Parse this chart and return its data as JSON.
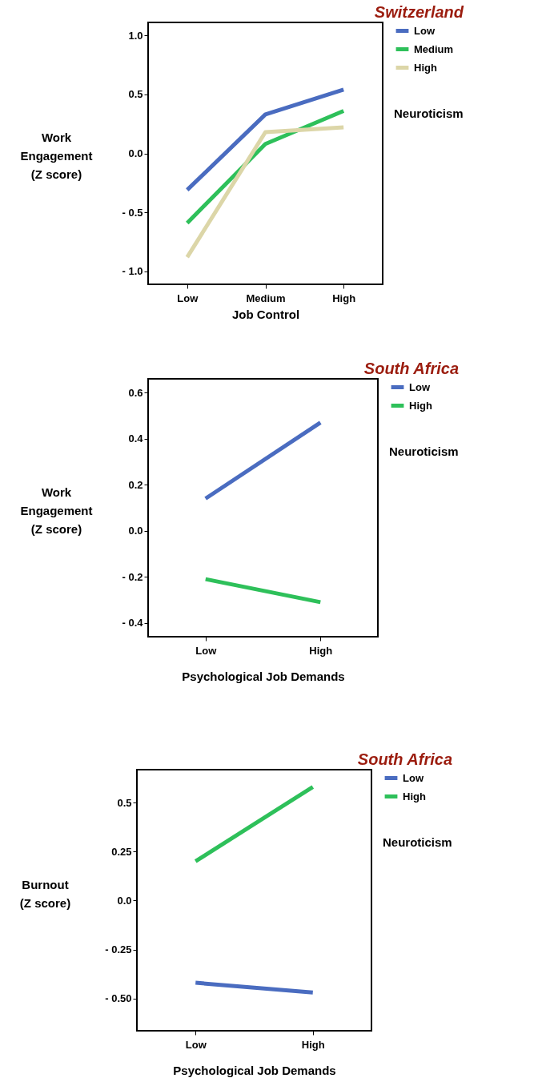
{
  "chart_data": [
    {
      "type": "line",
      "title": "Switzerland",
      "xlabel": "Job Control",
      "ylabel": "Work Engagement (Z score)",
      "legend_title": "Neuroticism",
      "legend": "right",
      "categories": [
        "Low",
        "Medium",
        "High"
      ],
      "ylim": [
        -1.11,
        1.11
      ],
      "yticks": [
        {
          "value": 1,
          "label": "1.0"
        },
        0.5,
        {
          "value": 0,
          "label": "0.0"
        },
        {
          "value": -0.5,
          "label": "- 0.5"
        },
        {
          "value": -1,
          "label": "- 1.0"
        }
      ],
      "series": [
        {
          "name": "Low",
          "color": "#4a6cc0",
          "values": [
            -0.31,
            0.33,
            0.54
          ]
        },
        {
          "name": "Medium",
          "color": "#2ec05a",
          "values": [
            -0.59,
            0.08,
            0.36
          ]
        },
        {
          "name": "High",
          "color": "#dcd6a8",
          "values": [
            -0.88,
            0.18,
            0.22
          ]
        }
      ]
    },
    {
      "type": "line",
      "title": "South Africa",
      "xlabel": "Psychological Job Demands",
      "ylabel": "Work Engagement (Z score)",
      "legend_title": "Neuroticism",
      "legend": "right",
      "categories": [
        "Low",
        "High"
      ],
      "ylim": [
        -0.46,
        0.66
      ],
      "yticks": [
        0.6,
        0.4,
        0.2,
        {
          "value": 0,
          "label": "0.0"
        },
        {
          "value": -0.2,
          "label": "- 0.2"
        },
        {
          "value": -0.4,
          "label": "- 0.4"
        }
      ],
      "series": [
        {
          "name": "Low",
          "color": "#4a6cc0",
          "values": [
            0.14,
            0.47
          ]
        },
        {
          "name": "High",
          "color": "#2ec05a",
          "values": [
            -0.21,
            -0.31
          ]
        }
      ]
    },
    {
      "type": "line",
      "title": "South Africa",
      "xlabel": "Psychological Job Demands",
      "ylabel": "Burnout (Z score)",
      "legend_title": "Neuroticism",
      "legend": "right",
      "categories": [
        "Low",
        "High"
      ],
      "ylim": [
        -0.665,
        0.668
      ],
      "yticks": [
        0.5,
        0.25,
        {
          "value": 0,
          "label": "0.0"
        },
        {
          "value": -0.25,
          "label": "- 0.25"
        },
        {
          "value": -0.5,
          "label": "- 0.50"
        }
      ],
      "series": [
        {
          "name": "Low",
          "color": "#4a6cc0",
          "values": [
            -0.42,
            -0.47
          ]
        },
        {
          "name": "High",
          "color": "#2ec05a",
          "values": [
            0.2,
            0.58
          ]
        }
      ]
    }
  ]
}
